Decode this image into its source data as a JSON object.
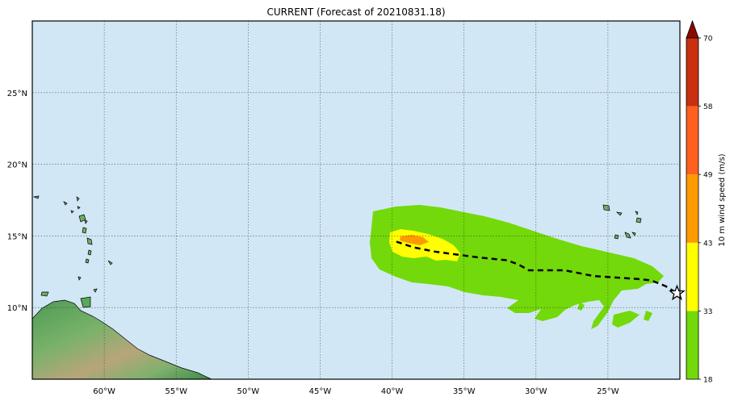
{
  "title": "CURRENT (Forecast of 20210831.18)",
  "map": {
    "lon_range": [
      -65,
      -20
    ],
    "lat_range": [
      5,
      30
    ],
    "lon_ticks": [
      -60,
      -55,
      -50,
      -45,
      -40,
      -35,
      -30,
      -25
    ],
    "lon_tick_labels": [
      "60°W",
      "55°W",
      "50°W",
      "45°W",
      "40°W",
      "35°W",
      "30°W",
      "25°W"
    ],
    "lat_ticks": [
      10,
      15,
      20,
      25
    ],
    "lat_tick_labels": [
      "10°N",
      "15°N",
      "20°N",
      "25°N"
    ],
    "ocean_color": "#d1e7f5",
    "grid": true
  },
  "colorbar": {
    "label": "10 m wind speed (m/s)",
    "levels": [
      18,
      33,
      43,
      49,
      58,
      70
    ],
    "level_labels": [
      "18",
      "33",
      "43",
      "49",
      "58",
      "70"
    ],
    "colors": [
      "#73d90a",
      "#ffff00",
      "#ff9a00",
      "#ff6020",
      "#c83010"
    ],
    "extend_color": "#8b0a00"
  },
  "track": {
    "style": "dashed",
    "points": [
      [
        -39.7,
        14.6
      ],
      [
        -38.5,
        14.2
      ],
      [
        -37,
        13.9
      ],
      [
        -35.5,
        13.7
      ],
      [
        -34,
        13.5
      ],
      [
        -32,
        13.3
      ],
      [
        -31.2,
        13.0
      ],
      [
        -30.5,
        12.6
      ],
      [
        -29,
        12.6
      ],
      [
        -28,
        12.6
      ],
      [
        -27,
        12.4
      ],
      [
        -26,
        12.2
      ],
      [
        -24.5,
        12.1
      ],
      [
        -23,
        12.0
      ],
      [
        -22,
        11.9
      ],
      [
        -21,
        11.5
      ],
      [
        -20.2,
        11.0
      ]
    ],
    "current_position": [
      -20.2,
      11.0
    ],
    "marker": "star"
  }
}
